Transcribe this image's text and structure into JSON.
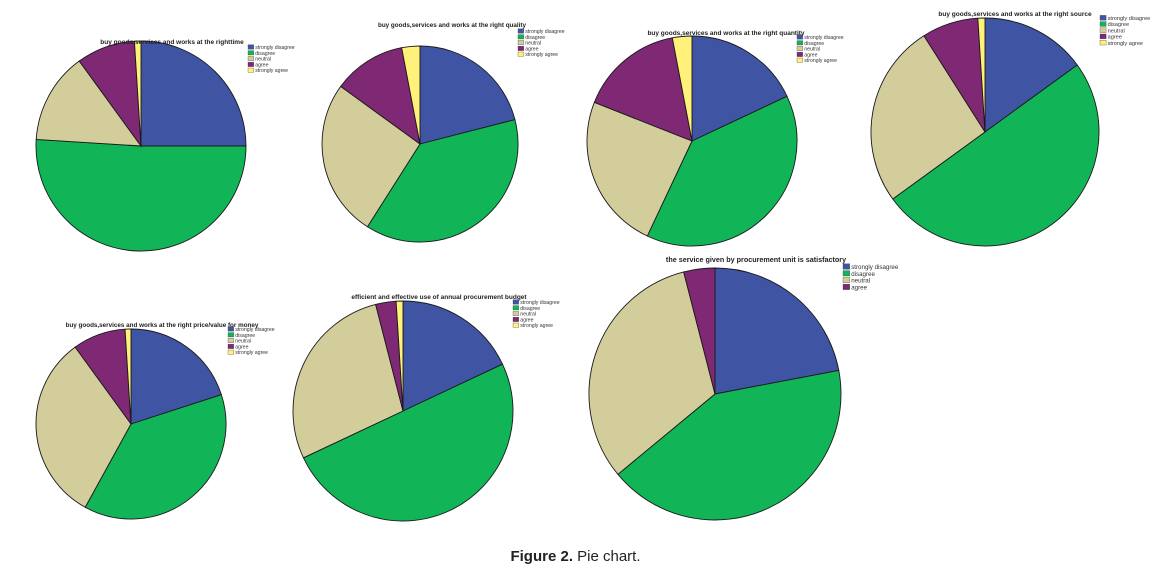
{
  "figure": {
    "caption_label": "Figure 2.",
    "caption_text": " Pie chart."
  },
  "colors": {
    "strongly disagree": "#3f55a3",
    "disagree": "#11b558",
    "neutral": "#d3cc9b",
    "agree": "#7f2874",
    "strongly agree": "#fff17a"
  },
  "chart_data": [
    {
      "type": "pie",
      "title": "buy goods,services and works at the righttime",
      "labels": [
        "strongly disagree",
        "disagree",
        "neutral",
        "agree",
        "strongly agree"
      ],
      "values": [
        25,
        51,
        14,
        9,
        1
      ],
      "legend": "top-right"
    },
    {
      "type": "pie",
      "title": "buy goods,services and works at the right quality",
      "labels": [
        "strongly disagree",
        "disagree",
        "neutral",
        "agree",
        "strongly agree"
      ],
      "values": [
        21,
        38,
        26,
        12,
        3
      ],
      "legend": "top-right"
    },
    {
      "type": "pie",
      "title": "buy goods,services and works at the right quantity",
      "labels": [
        "strongly disagree",
        "disagree",
        "neutral",
        "agree",
        "strongly agree"
      ],
      "values": [
        18,
        39,
        24,
        16,
        3
      ],
      "legend": "top-right"
    },
    {
      "type": "pie",
      "title": "buy goods,services and works at the right source",
      "labels": [
        "strongly disagree",
        "disagree",
        "neutral",
        "agree",
        "strongly agree"
      ],
      "values": [
        15,
        50,
        26,
        8,
        1
      ],
      "legend": "top-right"
    },
    {
      "type": "pie",
      "title": "buy goods,services and works at the right price/value for money",
      "labels": [
        "strongly disagree",
        "disagree",
        "neutral",
        "agree",
        "strongly agree"
      ],
      "values": [
        20,
        38,
        32,
        9,
        1
      ],
      "legend": "top-right"
    },
    {
      "type": "pie",
      "title": "efficient and effective use of annual procurement budget",
      "labels": [
        "strongly disagree",
        "disagree",
        "neutral",
        "agree",
        "strongly agree"
      ],
      "values": [
        18,
        50,
        28,
        3,
        1
      ],
      "legend": "top-right"
    },
    {
      "type": "pie",
      "title": "the service given by procurement unit is satisfactory",
      "labels": [
        "strongly disagree",
        "disagree",
        "neutral",
        "agree"
      ],
      "values": [
        22,
        42,
        32,
        4
      ],
      "legend": "top-right"
    }
  ]
}
